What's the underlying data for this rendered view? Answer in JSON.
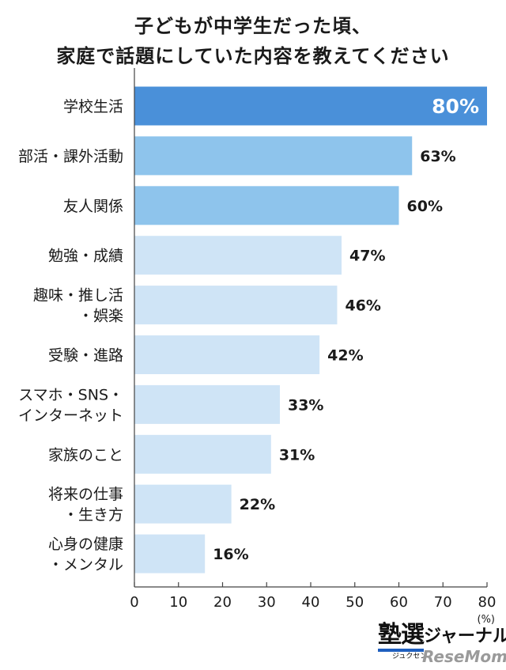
{
  "title": {
    "line1": "子どもが中学生だった頃、",
    "line2": "家庭で話題にしていた内容を教えてください"
  },
  "chart_data": {
    "type": "bar",
    "orientation": "horizontal",
    "categories": [
      [
        "学校生活"
      ],
      [
        "部活・課外活動"
      ],
      [
        "友人関係"
      ],
      [
        "勉強・成績"
      ],
      [
        "趣味・推し活",
        "・娯楽"
      ],
      [
        "受験・進路"
      ],
      [
        "スマホ・SNS・",
        "インターネット"
      ],
      [
        "家族のこと"
      ],
      [
        "将来の仕事",
        "・生き方"
      ],
      [
        "心身の健康",
        "・メンタル"
      ]
    ],
    "values": [
      80,
      63,
      60,
      47,
      46,
      42,
      33,
      31,
      22,
      16
    ],
    "value_labels": [
      "80%",
      "63%",
      "60%",
      "47%",
      "46%",
      "42%",
      "33%",
      "31%",
      "22%",
      "16%"
    ],
    "xlim": [
      0,
      80
    ],
    "xticks": [
      "0",
      "10",
      "20",
      "30",
      "40",
      "50",
      "60",
      "70",
      "80"
    ],
    "unit": "(%)",
    "grid": false,
    "colors": {
      "top": "#4a90d9",
      "mid": "#8ec4ec",
      "low": "#cfe4f6",
      "top_label": "#ffffff",
      "label": "#1a1a1a"
    }
  },
  "logo": {
    "main": "塾選",
    "sub": "ジャーナル",
    "reading": "ジュクセン",
    "partner": "ReseMom"
  }
}
